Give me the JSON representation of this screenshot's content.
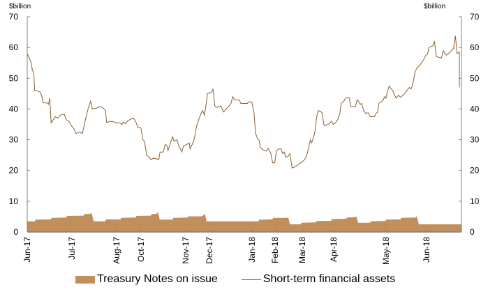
{
  "chart_data": {
    "type": "line+area",
    "title": "",
    "y_unit_left": "$billion",
    "y_unit_right": "$billion",
    "ylim": [
      0,
      70
    ],
    "yticks": [
      0,
      10,
      20,
      30,
      40,
      50,
      60,
      70
    ],
    "xlabel": "",
    "ylabel": "$billion",
    "x_tick_labels": [
      "Jun-17",
      "Jul-17",
      "Aug-17",
      "Oct-17",
      "Nov-17",
      "Dec-17",
      "Jan-18",
      "Feb-18",
      "Mar-18",
      "Apr-18",
      "May-18",
      "Jun-18"
    ],
    "x_tick_positions": [
      0.0,
      0.1029,
      0.2058,
      0.2621,
      0.3649,
      0.4196,
      0.5177,
      0.5707,
      0.6334,
      0.7058,
      0.8264,
      0.9196
    ],
    "grid": false,
    "legend_position": "bottom",
    "colors": {
      "area": "#c18f5b",
      "line": "#8b5e34",
      "axis": "#808080"
    },
    "series": [
      {
        "name": "Treasury Notes on issue",
        "type": "area",
        "points": [
          [
            0.0,
            3.5
          ],
          [
            0.018,
            3.5
          ],
          [
            0.019,
            4.0
          ],
          [
            0.055,
            4.1
          ],
          [
            0.056,
            4.6
          ],
          [
            0.09,
            4.7
          ],
          [
            0.091,
            5.2
          ],
          [
            0.13,
            5.3
          ],
          [
            0.131,
            5.8
          ],
          [
            0.145,
            5.9
          ],
          [
            0.148,
            6.2
          ],
          [
            0.153,
            3.5
          ],
          [
            0.18,
            3.5
          ],
          [
            0.181,
            4.1
          ],
          [
            0.215,
            4.1
          ],
          [
            0.216,
            4.6
          ],
          [
            0.25,
            4.7
          ],
          [
            0.251,
            5.2
          ],
          [
            0.285,
            5.3
          ],
          [
            0.286,
            5.8
          ],
          [
            0.298,
            5.9
          ],
          [
            0.301,
            6.6
          ],
          [
            0.305,
            4.0
          ],
          [
            0.335,
            4.0
          ],
          [
            0.336,
            4.6
          ],
          [
            0.37,
            4.7
          ],
          [
            0.371,
            5.1
          ],
          [
            0.4,
            5.1
          ],
          [
            0.405,
            5.3
          ],
          [
            0.409,
            6.0
          ],
          [
            0.413,
            3.5
          ],
          [
            0.533,
            3.5
          ],
          [
            0.534,
            4.0
          ],
          [
            0.565,
            4.1
          ],
          [
            0.566,
            4.6
          ],
          [
            0.599,
            4.6
          ],
          [
            0.601,
            4.9
          ],
          [
            0.605,
            2.5
          ],
          [
            0.63,
            2.5
          ],
          [
            0.631,
            3.0
          ],
          [
            0.665,
            3.1
          ],
          [
            0.666,
            3.6
          ],
          [
            0.7,
            3.6
          ],
          [
            0.701,
            4.2
          ],
          [
            0.735,
            4.3
          ],
          [
            0.736,
            4.7
          ],
          [
            0.755,
            4.8
          ],
          [
            0.758,
            5.1
          ],
          [
            0.762,
            3.0
          ],
          [
            0.79,
            3.0
          ],
          [
            0.791,
            3.5
          ],
          [
            0.825,
            3.6
          ],
          [
            0.826,
            4.0
          ],
          [
            0.86,
            4.1
          ],
          [
            0.861,
            4.6
          ],
          [
            0.895,
            4.7
          ],
          [
            0.897,
            5.2
          ],
          [
            0.902,
            2.5
          ],
          [
            0.925,
            2.5
          ],
          [
            1.0,
            2.5
          ]
        ]
      },
      {
        "name": "Short-term financial assets",
        "type": "line",
        "points": [
          [
            0.0,
            58.0
          ],
          [
            0.005,
            56.5
          ],
          [
            0.009,
            55.0
          ],
          [
            0.012,
            52.5
          ],
          [
            0.015,
            52.0
          ],
          [
            0.017,
            46.0
          ],
          [
            0.025,
            45.8
          ],
          [
            0.03,
            45.5
          ],
          [
            0.034,
            44.0
          ],
          [
            0.037,
            42.0
          ],
          [
            0.045,
            42.0
          ],
          [
            0.049,
            41.5
          ],
          [
            0.052,
            43.5
          ],
          [
            0.055,
            35.5
          ],
          [
            0.06,
            36.5
          ],
          [
            0.065,
            37.5
          ],
          [
            0.07,
            37.0
          ],
          [
            0.076,
            38.0
          ],
          [
            0.085,
            38.3
          ],
          [
            0.09,
            36.5
          ],
          [
            0.096,
            36.0
          ],
          [
            0.102,
            34.5
          ],
          [
            0.108,
            33.5
          ],
          [
            0.112,
            32.0
          ],
          [
            0.12,
            32.5
          ],
          [
            0.127,
            32.0
          ],
          [
            0.134,
            36.5
          ],
          [
            0.14,
            40.0
          ],
          [
            0.146,
            42.5
          ],
          [
            0.15,
            40.0
          ],
          [
            0.16,
            40.3
          ],
          [
            0.166,
            40.8
          ],
          [
            0.173,
            40.5
          ],
          [
            0.18,
            39.5
          ],
          [
            0.183,
            35.5
          ],
          [
            0.19,
            36.0
          ],
          [
            0.2,
            35.8
          ],
          [
            0.207,
            35.4
          ],
          [
            0.213,
            35.5
          ],
          [
            0.218,
            35.0
          ],
          [
            0.221,
            35.8
          ],
          [
            0.226,
            35.2
          ],
          [
            0.232,
            36.2
          ],
          [
            0.24,
            36.8
          ],
          [
            0.245,
            37.0
          ],
          [
            0.25,
            35.8
          ],
          [
            0.255,
            34.0
          ],
          [
            0.262,
            33.8
          ],
          [
            0.266,
            30.0
          ],
          [
            0.27,
            29.5
          ],
          [
            0.275,
            25.0
          ],
          [
            0.28,
            24.5
          ],
          [
            0.285,
            23.5
          ],
          [
            0.29,
            24.0
          ],
          [
            0.298,
            23.8
          ],
          [
            0.303,
            23.5
          ],
          [
            0.306,
            26.0
          ],
          [
            0.313,
            26.0
          ],
          [
            0.318,
            28.5
          ],
          [
            0.322,
            28.0
          ],
          [
            0.324,
            26.5
          ],
          [
            0.33,
            29.0
          ],
          [
            0.335,
            31.0
          ],
          [
            0.338,
            29.5
          ],
          [
            0.345,
            30.0
          ],
          [
            0.35,
            27.5
          ],
          [
            0.353,
            27.0
          ],
          [
            0.356,
            26.0
          ],
          [
            0.36,
            28.0
          ],
          [
            0.368,
            28.5
          ],
          [
            0.373,
            29.0
          ],
          [
            0.375,
            27.0
          ],
          [
            0.38,
            28.5
          ],
          [
            0.385,
            30.5
          ],
          [
            0.39,
            34.5
          ],
          [
            0.395,
            36.5
          ],
          [
            0.4,
            38.5
          ],
          [
            0.404,
            39.5
          ],
          [
            0.408,
            38.0
          ],
          [
            0.413,
            42.5
          ],
          [
            0.415,
            45.0
          ],
          [
            0.42,
            45.2
          ],
          [
            0.425,
            45.5
          ],
          [
            0.428,
            46.5
          ],
          [
            0.432,
            41.0
          ],
          [
            0.436,
            40.5
          ],
          [
            0.442,
            40.8
          ],
          [
            0.446,
            41.0
          ],
          [
            0.452,
            39.0
          ],
          [
            0.458,
            40.0
          ],
          [
            0.465,
            41.0
          ],
          [
            0.47,
            42.0
          ],
          [
            0.473,
            44.0
          ],
          [
            0.478,
            43.0
          ],
          [
            0.488,
            43.0
          ],
          [
            0.492,
            41.8
          ],
          [
            0.503,
            41.8
          ],
          [
            0.507,
            41.8
          ],
          [
            0.51,
            42.3
          ],
          [
            0.517,
            42.3
          ],
          [
            0.522,
            39.0
          ],
          [
            0.526,
            32.0
          ],
          [
            0.53,
            30.5
          ],
          [
            0.534,
            29.8
          ],
          [
            0.537,
            27.5
          ],
          [
            0.541,
            27.0
          ],
          [
            0.546,
            26.5
          ],
          [
            0.551,
            26.3
          ],
          [
            0.555,
            27.2
          ],
          [
            0.558,
            26.5
          ],
          [
            0.562,
            25.0
          ],
          [
            0.565,
            22.5
          ],
          [
            0.57,
            22.5
          ],
          [
            0.574,
            26.5
          ],
          [
            0.58,
            27.0
          ],
          [
            0.585,
            27.0
          ],
          [
            0.588,
            25.5
          ],
          [
            0.592,
            26.0
          ],
          [
            0.595,
            24.5
          ],
          [
            0.6,
            24.5
          ],
          [
            0.605,
            25.5
          ],
          [
            0.61,
            20.8
          ],
          [
            0.614,
            21.0
          ],
          [
            0.62,
            21.5
          ],
          [
            0.625,
            22.0
          ],
          [
            0.63,
            22.5
          ],
          [
            0.635,
            23.0
          ],
          [
            0.64,
            23.8
          ],
          [
            0.644,
            25.0
          ],
          [
            0.648,
            27.5
          ],
          [
            0.652,
            30.0
          ],
          [
            0.655,
            29.0
          ],
          [
            0.66,
            31.0
          ],
          [
            0.663,
            33.0
          ],
          [
            0.666,
            37.0
          ],
          [
            0.67,
            39.5
          ],
          [
            0.675,
            39.2
          ],
          [
            0.679,
            38.8
          ],
          [
            0.683,
            35.0
          ],
          [
            0.686,
            34.5
          ],
          [
            0.692,
            35.0
          ],
          [
            0.696,
            35.2
          ],
          [
            0.7,
            36.0
          ],
          [
            0.705,
            35.0
          ],
          [
            0.71,
            35.5
          ],
          [
            0.715,
            36.5
          ],
          [
            0.72,
            38.5
          ],
          [
            0.723,
            42.0
          ],
          [
            0.728,
            42.3
          ],
          [
            0.733,
            43.5
          ],
          [
            0.738,
            43.8
          ],
          [
            0.742,
            43.5
          ],
          [
            0.745,
            40.8
          ],
          [
            0.752,
            40.8
          ],
          [
            0.756,
            40.8
          ],
          [
            0.76,
            43.0
          ],
          [
            0.763,
            42.5
          ],
          [
            0.767,
            41.5
          ],
          [
            0.77,
            41.8
          ],
          [
            0.775,
            39.5
          ],
          [
            0.78,
            38.5
          ],
          [
            0.785,
            38.8
          ],
          [
            0.79,
            37.5
          ],
          [
            0.795,
            37.5
          ],
          [
            0.8,
            37.5
          ],
          [
            0.803,
            38.5
          ],
          [
            0.807,
            39.0
          ],
          [
            0.81,
            42.0
          ],
          [
            0.815,
            42.3
          ],
          [
            0.82,
            43.0
          ],
          [
            0.823,
            44.0
          ],
          [
            0.826,
            43.5
          ],
          [
            0.83,
            46.0
          ],
          [
            0.834,
            47.5
          ],
          [
            0.838,
            46.5
          ],
          [
            0.842,
            46.0
          ],
          [
            0.846,
            44.5
          ],
          [
            0.85,
            43.5
          ],
          [
            0.855,
            44.5
          ],
          [
            0.86,
            43.8
          ],
          [
            0.864,
            44.3
          ],
          [
            0.868,
            44.8
          ],
          [
            0.872,
            45.5
          ],
          [
            0.876,
            46.3
          ],
          [
            0.88,
            47.0
          ],
          [
            0.884,
            46.5
          ],
          [
            0.888,
            48.0
          ],
          [
            0.893,
            52.0
          ],
          [
            0.898,
            53.5
          ],
          [
            0.903,
            54.0
          ],
          [
            0.908,
            55.0
          ],
          [
            0.913,
            56.0
          ],
          [
            0.918,
            57.5
          ],
          [
            0.922,
            57.8
          ],
          [
            0.925,
            60.0
          ],
          [
            0.93,
            60.3
          ],
          [
            0.934,
            60.5
          ],
          [
            0.938,
            62.0
          ],
          [
            0.942,
            57.0
          ],
          [
            0.948,
            56.8
          ],
          [
            0.954,
            56.6
          ],
          [
            0.958,
            59.0
          ],
          [
            0.962,
            58.0
          ],
          [
            0.966,
            57.5
          ],
          [
            0.972,
            58.3
          ],
          [
            0.977,
            59.0
          ],
          [
            0.982,
            59.8
          ],
          [
            0.986,
            63.8
          ],
          [
            0.99,
            58.0
          ],
          [
            0.994,
            58.5
          ],
          [
            0.998,
            58.5
          ],
          [
            1.003,
            56.0
          ],
          [
            1.007,
            50.0
          ],
          [
            1.01,
            47.0
          ]
        ]
      }
    ]
  },
  "labels": {
    "left_unit": "$billion",
    "right_unit": "$billion"
  },
  "legend": {
    "items": [
      {
        "label": "Treasury Notes on issue",
        "kind": "area",
        "color": "#c18f5b"
      },
      {
        "label": "Short-term financial assets",
        "kind": "line",
        "color": "#8b5e34"
      }
    ]
  }
}
